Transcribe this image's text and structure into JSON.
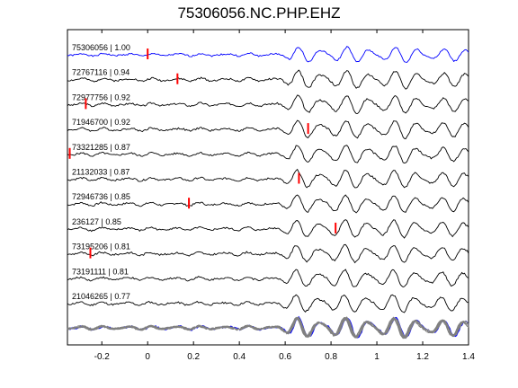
{
  "chart_data": {
    "type": "line",
    "title": "75306056.NC.PHP.EHZ",
    "xlabel": "",
    "ylabel": "",
    "xlim": [
      -0.35,
      1.4
    ],
    "xticks": [
      -0.2,
      0,
      0.2,
      0.4,
      0.6,
      0.8,
      1,
      1.2,
      1.4
    ],
    "xtick_labels": [
      "-0.2",
      "0",
      "0.2",
      "0.4",
      "0.6",
      "0.8",
      "1",
      "1.2",
      "1.4"
    ],
    "grid": false,
    "colors": {
      "reference": "#0000ff",
      "trace": "#000000",
      "pick": "#ff0000",
      "stack": "#808080"
    },
    "traces": [
      {
        "label": "75306056 | 1.00",
        "pick_time": 0.0,
        "reference": true,
        "seed": 1
      },
      {
        "label": "72767116 | 0.94",
        "pick_time": 0.13,
        "reference": false,
        "seed": 2
      },
      {
        "label": "72977756 | 0.92",
        "pick_time": -0.27,
        "reference": false,
        "seed": 3
      },
      {
        "label": "71946700 | 0.92",
        "pick_time": 0.7,
        "reference": false,
        "seed": 4
      },
      {
        "label": "73321285 | 0.87",
        "pick_time": -0.34,
        "reference": false,
        "seed": 5
      },
      {
        "label": "21132033 | 0.87",
        "pick_time": 0.66,
        "reference": false,
        "seed": 6
      },
      {
        "label": "72946736 | 0.85",
        "pick_time": 0.18,
        "reference": false,
        "seed": 7
      },
      {
        "label": "236127 | 0.85",
        "pick_time": 0.82,
        "reference": false,
        "seed": 8
      },
      {
        "label": "73195206 | 0.81",
        "pick_time": -0.25,
        "reference": false,
        "seed": 9
      },
      {
        "label": "73191111 | 0.81",
        "pick_time": null,
        "reference": false,
        "seed": 10
      },
      {
        "label": "21046265 | 0.77",
        "pick_time": null,
        "reference": false,
        "seed": 11
      }
    ],
    "stack": {
      "reference_overlay": true
    }
  }
}
